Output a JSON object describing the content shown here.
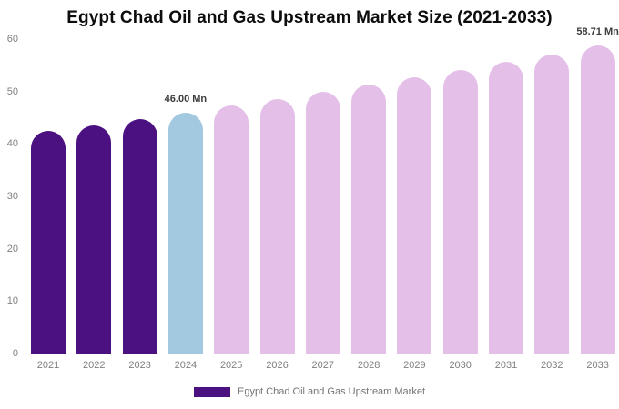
{
  "title": "Egypt Chad Oil and Gas Upstream Market Size (2021-2033)",
  "legend": {
    "label": "Egypt Chad Oil and Gas Upstream Market",
    "swatch_color": "#4B1181"
  },
  "colors": {
    "historical_bar": "#4B1181",
    "base_year_bar": "#A2C9DF",
    "forecast_bar": "#E4C0E8",
    "axis_line": "#CCCCCC",
    "tick_text": "#808080",
    "data_label_text": "#3C3C3C"
  },
  "chart_data": {
    "type": "bar",
    "title": "Egypt Chad Oil and Gas Upstream Market Size (2021-2033)",
    "xlabel": "",
    "ylabel": "",
    "unit": "Mn",
    "ylim": [
      0,
      60
    ],
    "yticks": [
      0,
      10,
      20,
      30,
      40,
      50,
      60
    ],
    "grid": false,
    "legend_position": "bottom",
    "categories": [
      "2021",
      "2022",
      "2023",
      "2024",
      "2025",
      "2026",
      "2027",
      "2028",
      "2029",
      "2030",
      "2031",
      "2032",
      "2033"
    ],
    "values": [
      42.41,
      43.57,
      44.77,
      46.0,
      47.26,
      48.56,
      49.9,
      51.27,
      52.68,
      54.12,
      55.61,
      57.14,
      58.71
    ],
    "bar_colors": [
      "#4B1181",
      "#4B1181",
      "#4B1181",
      "#A2C9DF",
      "#E4C0E8",
      "#E4C0E8",
      "#E4C0E8",
      "#E4C0E8",
      "#E4C0E8",
      "#E4C0E8",
      "#E4C0E8",
      "#E4C0E8",
      "#E4C0E8"
    ],
    "data_labels": [
      {
        "index": 3,
        "text": "46.00 Mn"
      },
      {
        "index": 12,
        "text": "58.71 Mn"
      }
    ]
  }
}
